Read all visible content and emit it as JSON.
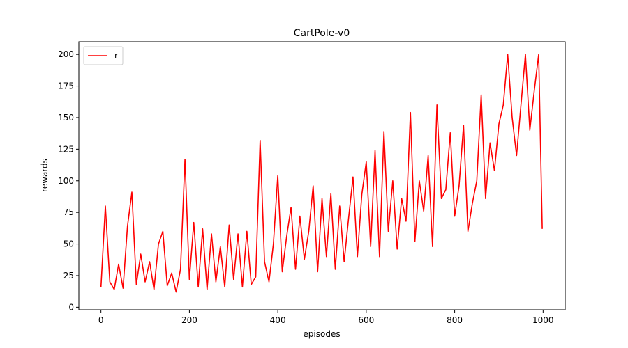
{
  "chart_data": {
    "type": "line",
    "title": "CartPole-v0",
    "xlabel": "episodes",
    "ylabel": "rewards",
    "xlim": [
      -50,
      1050
    ],
    "ylim": [
      -2,
      210
    ],
    "xticks": [
      0,
      200,
      400,
      600,
      800,
      1000
    ],
    "yticks": [
      0,
      25,
      50,
      75,
      100,
      125,
      150,
      175,
      200
    ],
    "grid": false,
    "legend": "top-left",
    "series": [
      {
        "name": "r",
        "color": "#ff0000",
        "x": [
          0,
          10,
          20,
          30,
          40,
          50,
          60,
          70,
          80,
          90,
          100,
          110,
          120,
          130,
          140,
          150,
          160,
          170,
          180,
          190,
          200,
          210,
          220,
          230,
          240,
          250,
          260,
          270,
          280,
          290,
          300,
          310,
          320,
          330,
          340,
          350,
          360,
          370,
          380,
          390,
          400,
          410,
          420,
          430,
          440,
          450,
          460,
          470,
          480,
          490,
          500,
          510,
          520,
          530,
          540,
          550,
          560,
          570,
          580,
          590,
          600,
          610,
          620,
          630,
          640,
          650,
          660,
          670,
          680,
          690,
          700,
          710,
          720,
          730,
          740,
          750,
          760,
          770,
          780,
          790,
          800,
          810,
          820,
          830,
          840,
          850,
          860,
          870,
          880,
          890,
          900,
          910,
          920,
          930,
          940,
          950,
          960,
          970,
          980,
          990,
          998
        ],
        "y": [
          16,
          80,
          20,
          14,
          34,
          15,
          64,
          91,
          18,
          42,
          20,
          36,
          14,
          50,
          60,
          17,
          27,
          12,
          30,
          117,
          22,
          67,
          16,
          62,
          14,
          58,
          20,
          48,
          16,
          65,
          22,
          58,
          16,
          60,
          18,
          24,
          132,
          36,
          20,
          50,
          104,
          28,
          56,
          79,
          30,
          72,
          38,
          60,
          96,
          28,
          86,
          40,
          90,
          30,
          80,
          36,
          70,
          103,
          40,
          89,
          115,
          48,
          124,
          40,
          139,
          60,
          100,
          46,
          86,
          68,
          154,
          52,
          100,
          76,
          120,
          48,
          160,
          86,
          93,
          138,
          72,
          96,
          144,
          60,
          82,
          100,
          168,
          86,
          130,
          108,
          145,
          160,
          200,
          150,
          120,
          160,
          200,
          140,
          171,
          200,
          62
        ]
      }
    ]
  }
}
